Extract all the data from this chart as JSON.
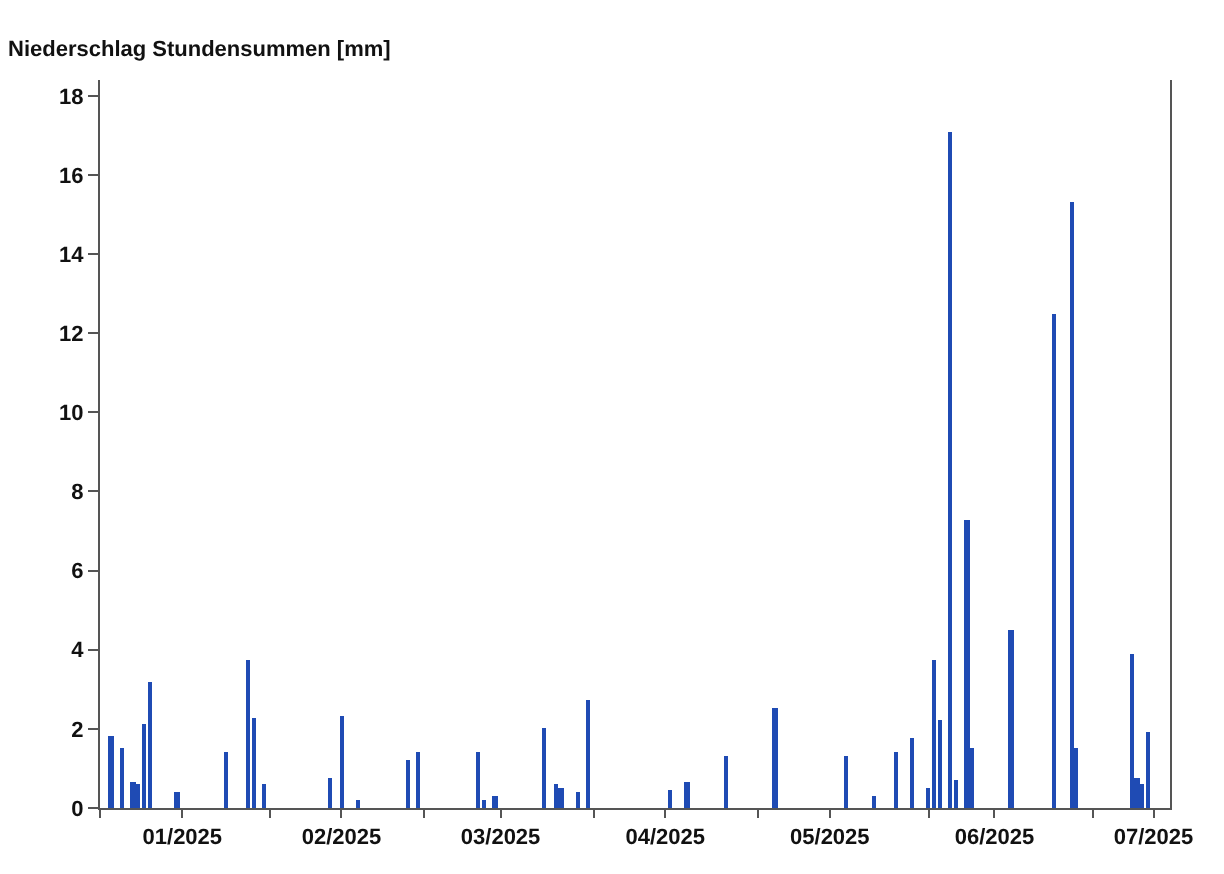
{
  "chart_data": {
    "type": "bar",
    "ylabel": "Niederschlag Stundensummen [mm]",
    "x": [
      "2025-01-03",
      "2025-01-05",
      "2025-01-07",
      "2025-01-08",
      "2025-01-09",
      "2025-01-10",
      "2025-01-15",
      "2025-01-24",
      "2025-01-28",
      "2025-01-29",
      "2025-01-31",
      "2025-02-12",
      "2025-02-14",
      "2025-02-17",
      "2025-02-26",
      "2025-02-28",
      "2025-03-11",
      "2025-03-12",
      "2025-03-14",
      "2025-03-23",
      "2025-03-25",
      "2025-03-26",
      "2025-03-29",
      "2025-03-31",
      "2025-04-15",
      "2025-04-18",
      "2025-04-25",
      "2025-05-04",
      "2025-05-17",
      "2025-05-22",
      "2025-05-26",
      "2025-05-29",
      "2025-06-01",
      "2025-06-02",
      "2025-06-03",
      "2025-06-05",
      "2025-06-06",
      "2025-06-08",
      "2025-06-09",
      "2025-06-16",
      "2025-06-24",
      "2025-06-27",
      "2025-06-28",
      "2025-07-08",
      "2025-07-09",
      "2025-07-10",
      "2025-07-11"
    ],
    "values": [
      1.8,
      1.5,
      0.65,
      0.6,
      2.1,
      3.2,
      0.4,
      1.4,
      3.75,
      2.3,
      0.6,
      0.75,
      2.35,
      0.2,
      1.2,
      1.4,
      1.4,
      0.2,
      0.3,
      2.0,
      0.6,
      0.5,
      0.4,
      2.75,
      0.45,
      0.65,
      1.3,
      2.55,
      1.3,
      0.3,
      1.4,
      1.75,
      0.5,
      3.75,
      2.2,
      17.1,
      0.7,
      7.3,
      1.5,
      4.5,
      12.5,
      15.3,
      1.5,
      3.9,
      0.75,
      0.6,
      1.9
    ],
    "color": "#1f4bb4",
    "xlim": [
      "2025-01-01",
      "2025-07-15"
    ],
    "xticks": [
      {
        "value": "2025-01-01",
        "label": null
      },
      {
        "value": "2025-01-16",
        "label": "01/2025"
      },
      {
        "value": "2025-02-01",
        "label": null
      },
      {
        "value": "2025-02-14",
        "label": "02/2025"
      },
      {
        "value": "2025-03-01",
        "label": null
      },
      {
        "value": "2025-03-15",
        "label": "03/2025"
      },
      {
        "value": "2025-04-01",
        "label": null
      },
      {
        "value": "2025-04-14",
        "label": "04/2025"
      },
      {
        "value": "2025-05-01",
        "label": null
      },
      {
        "value": "2025-05-14",
        "label": "05/2025"
      },
      {
        "value": "2025-06-01",
        "label": null
      },
      {
        "value": "2025-06-13",
        "label": "06/2025"
      },
      {
        "value": "2025-07-01",
        "label": null
      },
      {
        "value": "2025-07-12",
        "label": "07/2025"
      }
    ],
    "ylim": [
      0,
      18.4
    ],
    "yticks": [
      0,
      2,
      4,
      6,
      8,
      10,
      12,
      14,
      16,
      18
    ]
  }
}
